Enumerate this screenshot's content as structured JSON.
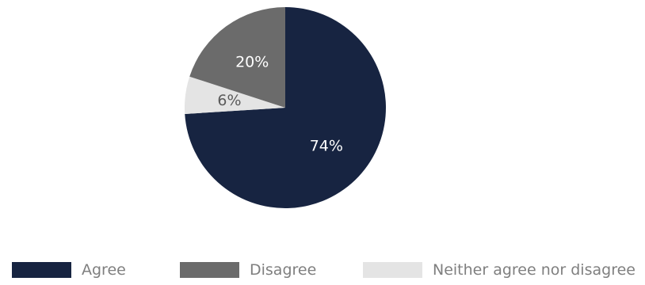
{
  "chart_data": {
    "type": "pie",
    "title": "",
    "slices": [
      {
        "label": "Agree",
        "value": 74,
        "display": "74%",
        "color": "#172441",
        "label_color": "#ffffff"
      },
      {
        "label": "Neither agree nor disagree",
        "value": 6,
        "display": "6%",
        "color": "#e4e4e4",
        "label_color": "#5a5a5a"
      },
      {
        "label": "Disagree",
        "value": 20,
        "display": "20%",
        "color": "#6b6b6b",
        "label_color": "#ffffff"
      }
    ],
    "legend": {
      "placement": "bottom",
      "items": [
        {
          "label": "Agree",
          "color": "#172441"
        },
        {
          "label": "Disagree",
          "color": "#6b6b6b"
        },
        {
          "label": "Neither agree nor disagree",
          "color": "#e4e4e4"
        }
      ]
    }
  }
}
